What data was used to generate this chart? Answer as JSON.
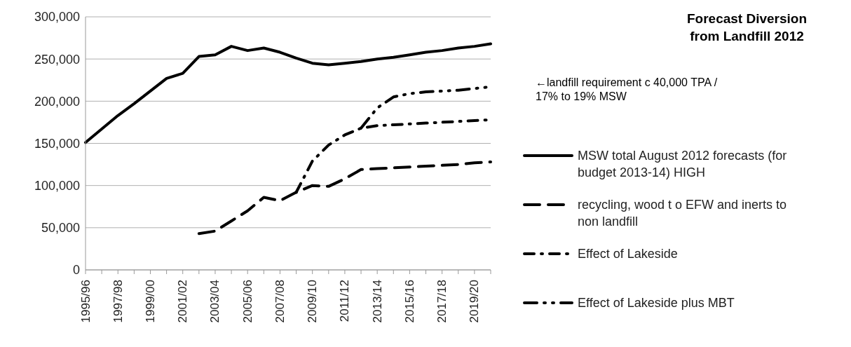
{
  "chart_data": {
    "type": "line",
    "title": "Forecast Diversion from Landfill 2012",
    "annotations": [
      "←landfill requirement c 40,000 TPA / 17% to 19% MSW"
    ],
    "categories": [
      "1995/96",
      null,
      "1997/98",
      null,
      "1999/00",
      null,
      "2001/02",
      null,
      "2003/04",
      null,
      "2005/06",
      null,
      "2007/08",
      null,
      "2009/10",
      null,
      "2011/12",
      null,
      "2013/14",
      null,
      "2015/16",
      null,
      "2017/18",
      null,
      "2019/20",
      null
    ],
    "series": [
      {
        "name": "MSW total August 2012 forecasts (for budget 2013-14) HIGH",
        "color": "#000000",
        "line_style": "solid",
        "values": [
          151000,
          167000,
          183000,
          197000,
          212000,
          227000,
          233000,
          253000,
          255000,
          265000,
          260000,
          263000,
          258000,
          251000,
          245000,
          243000,
          245000,
          247000,
          250000,
          252000,
          255000,
          258000,
          260000,
          263000,
          265000,
          268000
        ]
      },
      {
        "name": "recycling, wood t o EFW and  inerts to non landfill",
        "color": "#000000",
        "line_style": "dashed",
        "values": [
          null,
          null,
          null,
          null,
          null,
          null,
          null,
          43000,
          46000,
          58000,
          70000,
          86000,
          82000,
          92000,
          100000,
          99000,
          108000,
          119000,
          120000,
          121000,
          122000,
          123000,
          124000,
          125000,
          127000,
          128000
        ]
      },
      {
        "name": "Effect of Lakeside",
        "color": "#000000",
        "line_style": "dashdot",
        "values": [
          null,
          null,
          null,
          null,
          null,
          null,
          null,
          null,
          null,
          null,
          null,
          null,
          null,
          92000,
          129000,
          148000,
          160000,
          168000,
          171000,
          172000,
          173000,
          174000,
          175000,
          176000,
          177000,
          178000
        ]
      },
      {
        "name": "Effect of Lakeside plus MBT",
        "color": "#000000",
        "line_style": "dashdotdot",
        "values": [
          null,
          null,
          null,
          null,
          null,
          null,
          null,
          null,
          null,
          null,
          null,
          null,
          null,
          null,
          null,
          null,
          null,
          168000,
          192000,
          205000,
          209000,
          211000,
          212000,
          213000,
          215000,
          217000
        ]
      }
    ],
    "ylim": [
      0,
      300000
    ],
    "yticks": [
      0,
      {
        "value": 50000,
        "label": "50,000"
      },
      {
        "value": 100000,
        "label": "100,000"
      },
      {
        "value": 150000,
        "label": "150,000"
      },
      {
        "value": 200000,
        "label": "200,000"
      },
      {
        "value": 250000,
        "label": "250,000"
      },
      {
        "value": 300000,
        "label": "300,000"
      }
    ],
    "grid": "y",
    "legend": "right",
    "marker": "none"
  }
}
